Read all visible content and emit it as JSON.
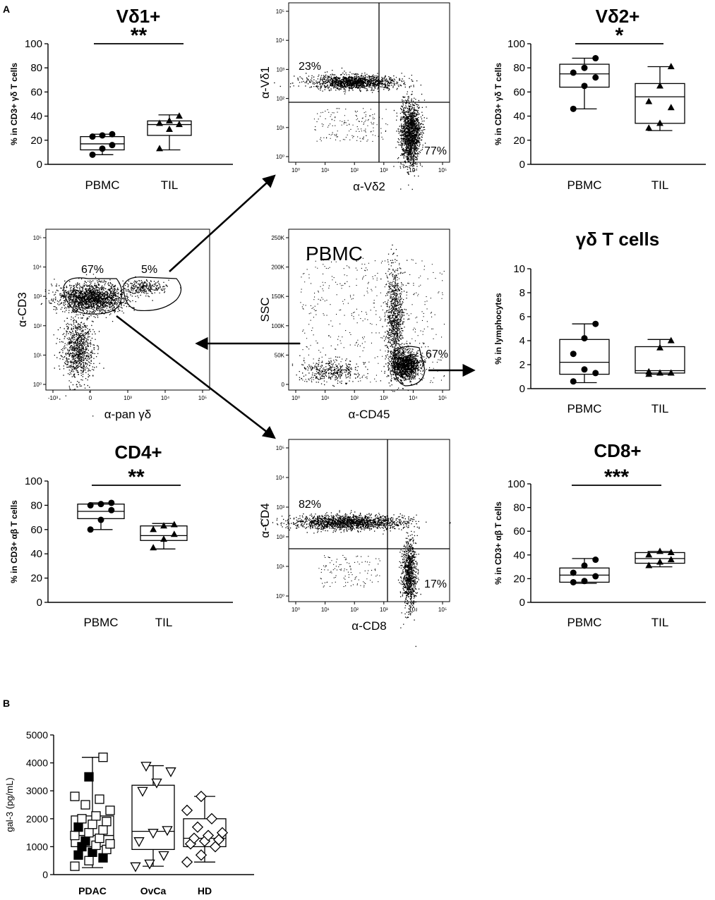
{
  "panel_labels": {
    "a": "A",
    "b": "B"
  },
  "chart_data": [
    {
      "id": "vd1",
      "type": "box",
      "title": "Vδ1+",
      "ylabel": "% in CD3+ γδ T cells",
      "categories": [
        "PBMC",
        "TIL"
      ],
      "ylim": [
        0,
        100
      ],
      "yticks": [
        0,
        20,
        40,
        60,
        80,
        100
      ],
      "significance": "**",
      "series": [
        {
          "name": "PBMC",
          "marker": "circle",
          "points": [
            8,
            13,
            16,
            23,
            24,
            25
          ],
          "box": {
            "min": 8,
            "q1": 12,
            "median": 17,
            "q3": 23,
            "max": 25
          }
        },
        {
          "name": "TIL",
          "marker": "triangle",
          "points": [
            13,
            29,
            33,
            34,
            36,
            40
          ],
          "box": {
            "min": 12,
            "q1": 24,
            "median": 33,
            "q3": 36,
            "max": 41
          }
        }
      ]
    },
    {
      "id": "vd2",
      "type": "box",
      "title": "Vδ2+",
      "ylabel": "% in CD3+ γδ T cells",
      "categories": [
        "PBMC",
        "TIL"
      ],
      "ylim": [
        0,
        100
      ],
      "yticks": [
        0,
        20,
        40,
        60,
        80,
        100
      ],
      "significance": "*",
      "series": [
        {
          "name": "PBMC",
          "marker": "circle",
          "points": [
            46,
            65,
            72,
            76,
            80,
            88
          ],
          "box": {
            "min": 46,
            "q1": 64,
            "median": 75,
            "q3": 83,
            "max": 88
          }
        },
        {
          "name": "TIL",
          "marker": "triangle",
          "points": [
            30,
            34,
            47,
            52,
            65,
            81
          ],
          "box": {
            "min": 28,
            "q1": 34,
            "median": 56,
            "q3": 67,
            "max": 81
          }
        }
      ]
    },
    {
      "id": "gd",
      "type": "box",
      "title": "γδ T cells",
      "ylabel": "% in lymphocytes",
      "categories": [
        "PBMC",
        "TIL"
      ],
      "ylim": [
        0,
        10
      ],
      "yticks": [
        0,
        2,
        4,
        6,
        8,
        10
      ],
      "significance": "",
      "series": [
        {
          "name": "PBMC",
          "marker": "circle",
          "points": [
            0.6,
            1.6,
            1.3,
            2.9,
            4.2,
            5.4
          ],
          "box": {
            "min": 0.5,
            "q1": 1.2,
            "median": 2.2,
            "q3": 4.1,
            "max": 5.4
          }
        },
        {
          "name": "TIL",
          "marker": "triangle",
          "points": [
            1.2,
            1.3,
            1.3,
            1.4,
            3.4,
            4.0
          ],
          "box": {
            "min": 1.2,
            "q1": 1.3,
            "median": 1.5,
            "q3": 3.5,
            "max": 4.1
          }
        }
      ]
    },
    {
      "id": "cd4",
      "type": "box",
      "title": "CD4+",
      "ylabel": "% in CD3+ αβ T cells",
      "categories": [
        "PBMC",
        "TIL"
      ],
      "ylim": [
        0,
        100
      ],
      "yticks": [
        0,
        20,
        40,
        60,
        80,
        100
      ],
      "significance": "**",
      "series": [
        {
          "name": "PBMC",
          "marker": "circle",
          "points": [
            60,
            68,
            76,
            80,
            81,
            82
          ],
          "box": {
            "min": 60,
            "q1": 69,
            "median": 75,
            "q3": 81,
            "max": 82
          }
        },
        {
          "name": "TIL",
          "marker": "triangle",
          "points": [
            45,
            52,
            56,
            60,
            63,
            64
          ],
          "box": {
            "min": 44,
            "q1": 51,
            "median": 55,
            "q3": 63,
            "max": 65
          }
        }
      ]
    },
    {
      "id": "cd8",
      "type": "box",
      "title": "CD8+",
      "ylabel": "% in CD3+ αβ T cells",
      "categories": [
        "PBMC",
        "TIL"
      ],
      "ylim": [
        0,
        100
      ],
      "yticks": [
        0,
        20,
        40,
        60,
        80,
        100
      ],
      "significance": "***",
      "series": [
        {
          "name": "PBMC",
          "marker": "circle",
          "points": [
            17,
            18,
            22,
            25,
            31,
            36
          ],
          "box": {
            "min": 16,
            "q1": 17,
            "median": 23,
            "q3": 29,
            "max": 37
          }
        },
        {
          "name": "TIL",
          "marker": "triangle",
          "points": [
            31,
            34,
            36,
            40,
            43,
            42
          ],
          "box": {
            "min": 30,
            "q1": 33,
            "median": 37,
            "q3": 42,
            "max": 43
          }
        }
      ]
    },
    {
      "id": "gal3",
      "type": "box",
      "title": "",
      "ylabel": "gal-3 (pg/mL)",
      "categories": [
        "PDAC",
        "OvCa",
        "HD"
      ],
      "ylim": [
        0,
        5000
      ],
      "yticks": [
        0,
        1000,
        2000,
        3000,
        4000,
        5000
      ],
      "significance": "",
      "series": [
        {
          "name": "PDAC",
          "marker": "square",
          "points": [
            300,
            500,
            600,
            700,
            800,
            900,
            1000,
            1050,
            1100,
            1200,
            1300,
            1400,
            1500,
            1600,
            1700,
            1800,
            1900,
            2000,
            2100,
            2300,
            2500,
            2700,
            2800,
            3500,
            4200
          ],
          "filled": [
            0,
            0,
            1,
            1,
            1,
            0,
            1,
            0,
            0,
            1,
            0,
            0,
            0,
            0,
            1,
            0,
            0,
            0,
            0,
            0,
            0,
            0,
            0,
            1,
            0
          ],
          "box": {
            "min": 250,
            "q1": 1000,
            "median": 1400,
            "q3": 2100,
            "max": 4200
          }
        },
        {
          "name": "OvCa",
          "marker": "triangle-down",
          "points": [
            300,
            400,
            700,
            1200,
            1500,
            1600,
            3000,
            3300,
            3700,
            3900
          ],
          "box": {
            "min": 300,
            "q1": 900,
            "median": 1550,
            "q3": 3200,
            "max": 3900
          }
        },
        {
          "name": "HD",
          "marker": "diamond",
          "points": [
            450,
            700,
            1000,
            1100,
            1200,
            1250,
            1300,
            1400,
            1500,
            1700,
            2000,
            2300,
            2800
          ],
          "box": {
            "min": 450,
            "q1": 1000,
            "median": 1300,
            "q3": 2000,
            "max": 2800
          }
        }
      ]
    }
  ],
  "flow_plots": [
    {
      "id": "vd1vd2",
      "xlabel": "α-Vδ2",
      "ylabel": "α-Vδ1",
      "xticks": [
        "10⁰",
        "10¹",
        "10²",
        "10³",
        "10⁴",
        "10⁵"
      ],
      "yticks": [
        "10⁰",
        "10¹",
        "10²",
        "10³",
        "10⁴",
        "10⁵"
      ],
      "annotations": [
        "23%",
        "77%"
      ]
    },
    {
      "id": "cd3pan",
      "xlabel": "α-pan γδ",
      "ylabel": "α-CD3",
      "xticks": [
        "-10³",
        "0",
        "10³",
        "10⁴",
        "10⁵"
      ],
      "yticks": [
        "10⁰",
        "10¹",
        "10²",
        "10³",
        "10⁴",
        "10⁵"
      ],
      "annotations": [
        "67%",
        "5%"
      ]
    },
    {
      "id": "ssccd45",
      "xlabel": "α-CD45",
      "ylabel": "SSC",
      "title": "PBMC",
      "xticks": [
        "10⁰",
        "10¹",
        "10²",
        "10³",
        "10⁴",
        "10⁵"
      ],
      "yticks": [
        "0",
        "50K",
        "100K",
        "150K",
        "200K",
        "250K"
      ],
      "annotations": [
        "67%"
      ]
    },
    {
      "id": "cd4cd8",
      "xlabel": "α-CD8",
      "ylabel": "α-CD4",
      "xticks": [
        "10⁰",
        "10¹",
        "10²",
        "10³",
        "10⁴",
        "10⁵"
      ],
      "yticks": [
        "10⁰",
        "10¹",
        "10²",
        "10³",
        "10⁴",
        "10⁵"
      ],
      "annotations": [
        "82%",
        "17%"
      ]
    }
  ]
}
